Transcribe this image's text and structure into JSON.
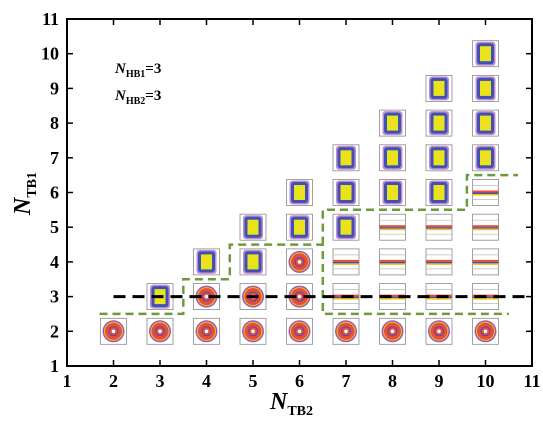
{
  "chart_data": {
    "type": "scatter",
    "title": "",
    "xlabel": {
      "main": "N",
      "sub": "TB2"
    },
    "ylabel": {
      "main": "N",
      "sub": "TB1"
    },
    "xlim": [
      1,
      11
    ],
    "ylim": [
      1,
      11
    ],
    "xticks": [
      "1",
      "2",
      "3",
      "4",
      "5",
      "6",
      "7",
      "8",
      "9",
      "10",
      "11"
    ],
    "yticks": [
      "1",
      "2",
      "3",
      "4",
      "5",
      "6",
      "7",
      "8",
      "9",
      "10",
      "11"
    ],
    "annotations": [
      {
        "main": "N",
        "sub": "HB1",
        "value": "=3"
      },
      {
        "main": "N",
        "sub": "HB2",
        "value": "=3"
      }
    ],
    "reference_line": {
      "y": 3,
      "x_from": 2,
      "x_to": 11,
      "style": "dashed",
      "color": "#000000"
    },
    "boundary": {
      "style": "dashed",
      "color": "#6f9a3a",
      "path": [
        [
          1.7,
          2.5
        ],
        [
          3.5,
          2.5
        ],
        [
          3.5,
          3.5
        ],
        [
          4.5,
          3.5
        ],
        [
          4.5,
          4.5
        ],
        [
          6.5,
          4.5
        ],
        [
          6.5,
          2.5
        ],
        [
          10.5,
          2.5
        ]
      ],
      "upper_path": [
        [
          6.5,
          4.5
        ],
        [
          6.5,
          5.5
        ],
        [
          7.5,
          5.5
        ],
        [
          7.5,
          5.5
        ],
        [
          9.6,
          5.5
        ],
        [
          9.6,
          6.5
        ],
        [
          10.7,
          6.5
        ]
      ]
    },
    "points": {
      "x": [
        2,
        3,
        4,
        5,
        6,
        7,
        8,
        9,
        10,
        3,
        4,
        5,
        6,
        7,
        8,
        9,
        10,
        4,
        5,
        6,
        7,
        8,
        9,
        10,
        5,
        6,
        7,
        8,
        9,
        10,
        6,
        7,
        8,
        9,
        10,
        7,
        8,
        9,
        10,
        8,
        9,
        10,
        9,
        10,
        10
      ],
      "y": [
        2,
        2,
        2,
        2,
        2,
        2,
        2,
        2,
        2,
        3,
        3,
        3,
        3,
        3,
        3,
        3,
        3,
        4,
        4,
        4,
        4,
        4,
        4,
        4,
        5,
        5,
        5,
        5,
        5,
        5,
        6,
        6,
        6,
        6,
        6,
        7,
        7,
        7,
        7,
        8,
        8,
        8,
        9,
        9,
        10
      ],
      "pattern": [
        "circle",
        "circle",
        "circle",
        "circle",
        "circle",
        "circle",
        "circle",
        "circle",
        "circle",
        "rect",
        "circle",
        "circle",
        "circle",
        "band",
        "band",
        "band",
        "band",
        "rect",
        "rect",
        "circle",
        "band",
        "band",
        "band",
        "band",
        "rect",
        "rect",
        "rect",
        "band",
        "band",
        "band",
        "rect",
        "rect",
        "rect",
        "rect",
        "band",
        "rect",
        "rect",
        "rect",
        "rect",
        "rect",
        "rect",
        "rect",
        "rect",
        "rect",
        "rect"
      ]
    },
    "pattern_colors": {
      "circle": [
        "#9b59b6",
        "#f1c40f",
        "#e74c3c",
        "#3f51b5",
        "#ffffff"
      ],
      "rect": [
        "#c08bd0",
        "#3f51b5",
        "#e9e21c"
      ],
      "band": [
        "#e74c3c",
        "#3f51b5",
        "#f1c40f"
      ]
    },
    "grid": false,
    "legend": "none"
  }
}
